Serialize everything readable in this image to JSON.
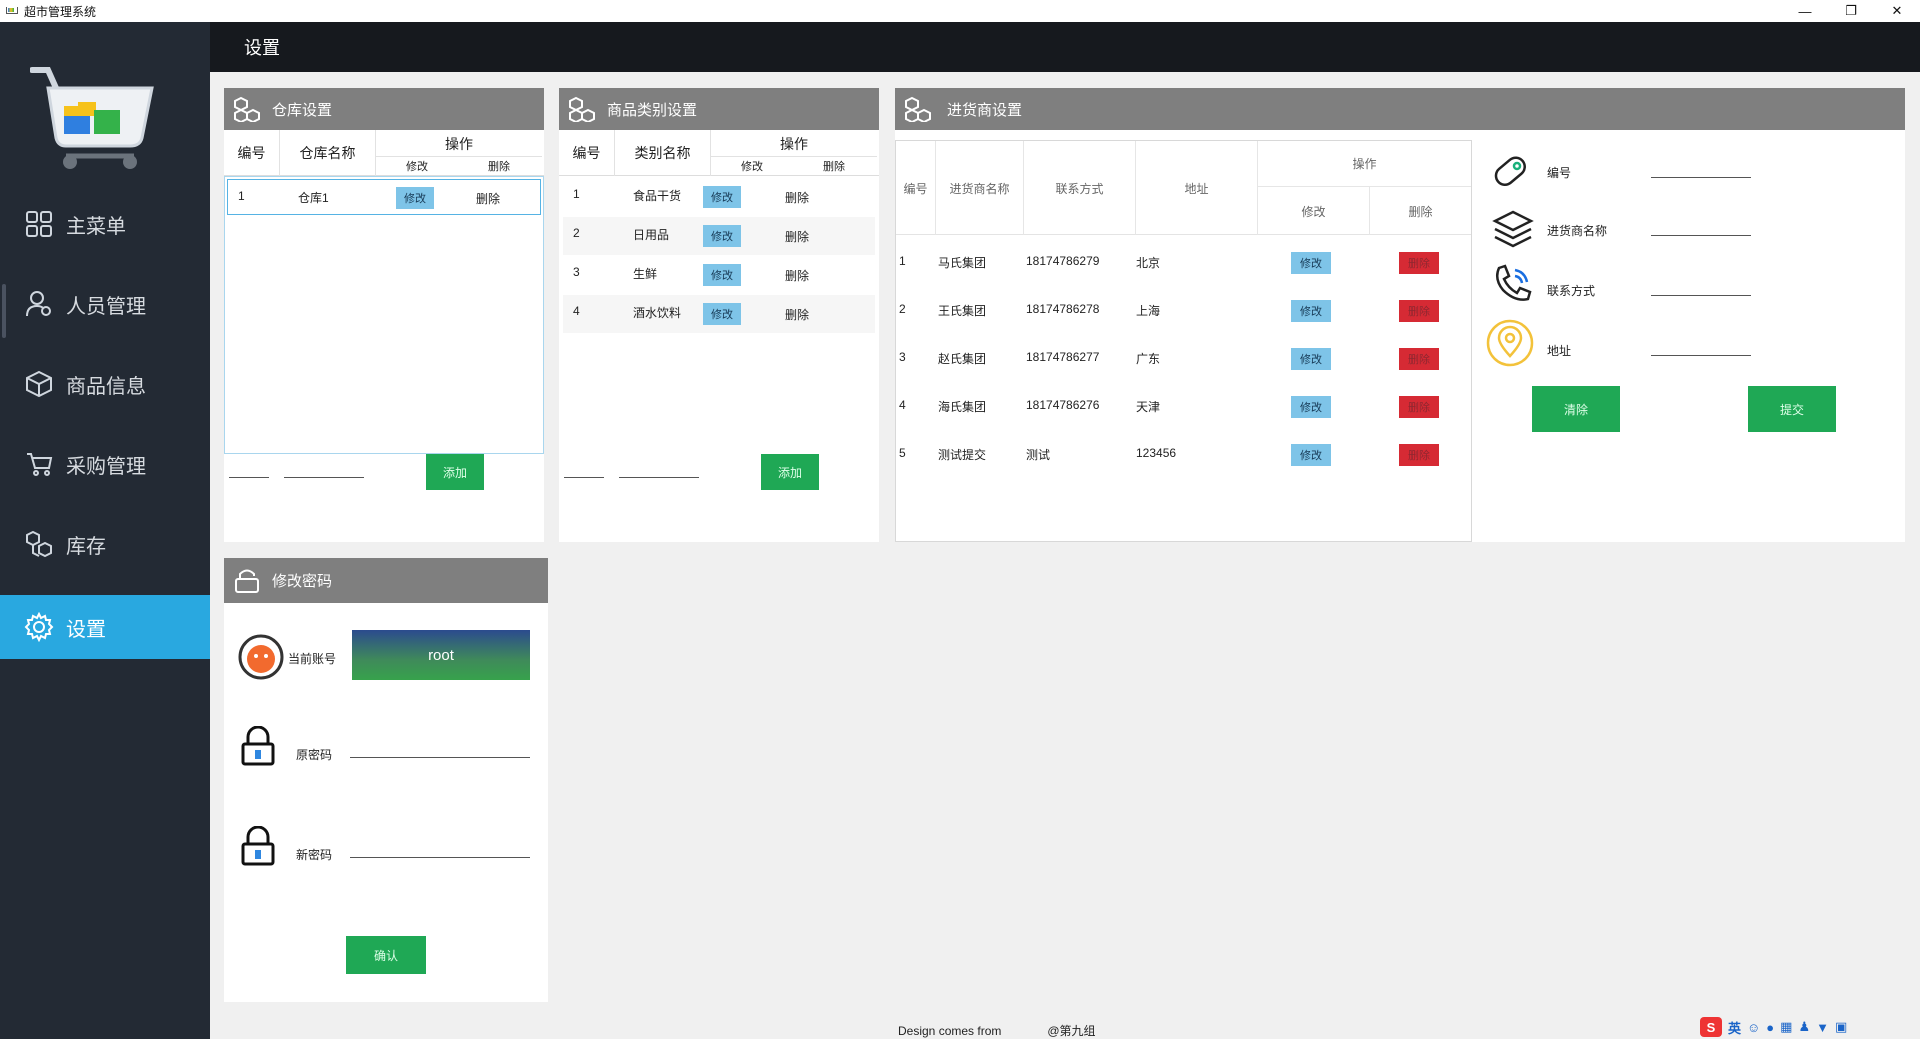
{
  "window": {
    "title": "超市管理系统",
    "minimize": "—",
    "restore": "❐",
    "close": "✕"
  },
  "sidebar": {
    "items": [
      {
        "label": "主菜单",
        "icon": "grid-icon"
      },
      {
        "label": "人员管理",
        "icon": "user-gear-icon"
      },
      {
        "label": "商品信息",
        "icon": "box-icon"
      },
      {
        "label": "采购管理",
        "icon": "cart-icon"
      },
      {
        "label": "库存",
        "icon": "boxes-icon"
      },
      {
        "label": "设置",
        "icon": "gear-icon",
        "active": true
      }
    ]
  },
  "header": {
    "title": "设置"
  },
  "warehouse": {
    "title": "仓库设置",
    "col_id": "编号",
    "col_name": "仓库名称",
    "col_op": "操作",
    "col_edit": "修改",
    "col_del": "删除",
    "rows": [
      {
        "id": "1",
        "name": "仓库1",
        "edit": "修改",
        "del": "删除"
      }
    ],
    "add_label": "添加"
  },
  "category": {
    "title": "商品类别设置",
    "col_id": "编号",
    "col_name": "类别名称",
    "col_op": "操作",
    "col_edit": "修改",
    "col_del": "删除",
    "rows": [
      {
        "id": "1",
        "name": "食品干货",
        "edit": "修改",
        "del": "删除"
      },
      {
        "id": "2",
        "name": "日用品",
        "edit": "修改",
        "del": "删除"
      },
      {
        "id": "3",
        "name": "生鲜",
        "edit": "修改",
        "del": "删除"
      },
      {
        "id": "4",
        "name": "酒水饮料",
        "edit": "修改",
        "del": "删除"
      }
    ],
    "add_label": "添加"
  },
  "supplier": {
    "title": "进货商设置",
    "col_id": "编号",
    "col_name": "进货商名称",
    "col_contact": "联系方式",
    "col_addr": "地址",
    "col_op": "操作",
    "col_edit": "修改",
    "col_del": "删除",
    "rows": [
      {
        "id": "1",
        "name": "马氏集团",
        "contact": "18174786279",
        "addr": "北京",
        "edit": "修改",
        "del": "删除"
      },
      {
        "id": "2",
        "name": "王氏集团",
        "contact": "18174786278",
        "addr": "上海",
        "edit": "修改",
        "del": "删除"
      },
      {
        "id": "3",
        "name": "赵氏集团",
        "contact": "18174786277",
        "addr": "广东",
        "edit": "修改",
        "del": "删除"
      },
      {
        "id": "4",
        "name": "海氏集团",
        "contact": "18174786276",
        "addr": "天津",
        "edit": "修改",
        "del": "删除"
      },
      {
        "id": "5",
        "name": "测试提交",
        "contact": "测试",
        "addr": "123456",
        "edit": "修改",
        "del": "删除"
      }
    ],
    "form": {
      "id_label": "编号",
      "name_label": "进货商名称",
      "contact_label": "联系方式",
      "addr_label": "地址",
      "clear_label": "清除",
      "submit_label": "提交"
    }
  },
  "password": {
    "title": "修改密码",
    "account_label": "当前账号",
    "account_value": "root",
    "old_label": "原密码",
    "new_label": "新密码",
    "confirm_label": "确认"
  },
  "footer": {
    "credit": "Design comes from",
    "group": "@第九组"
  },
  "ime": {
    "lang": "英"
  },
  "colors": {
    "sidebar": "#232a34",
    "active": "#29a8e0",
    "topbar": "#16191e",
    "panel_header": "#7f7f7f",
    "green": "#1fa855",
    "edit": "#7ec4e8",
    "delete": "#d62a34"
  }
}
